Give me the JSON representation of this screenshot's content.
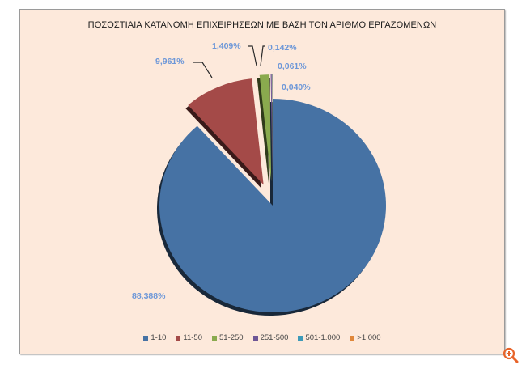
{
  "chart_data": {
    "type": "pie",
    "title": "ΠΟΣΟΣΤΙΑΙΑ ΚΑΤΑΝΟΜΗ ΕΠΙΧΕΙΡΗΣΕΩΝ ΜΕ ΒΑΣΗ ΤΟΝ ΑΡΙΘΜΟ ΕΡΓΑΖΟΜΕΝΩΝ",
    "categories": [
      "1-10",
      "11-50",
      "51-250",
      "251-500",
      "501-1.000",
      ">1.000"
    ],
    "values": [
      88.388,
      9.961,
      1.409,
      0.142,
      0.061,
      0.04
    ],
    "labels": [
      "88,388%",
      "9,961%",
      "1,409%",
      "0,142%",
      "0,061%",
      "0,040%"
    ],
    "colors": [
      "#4672a4",
      "#a44a48",
      "#8aaa4e",
      "#6e5696",
      "#3d9ab8",
      "#e0873a"
    ],
    "exploded": [
      false,
      true,
      true,
      true,
      true,
      true
    ],
    "legend_position": "bottom",
    "background": "#fde9db"
  },
  "legend": [
    {
      "label": "1-10",
      "color": "#4672a4"
    },
    {
      "label": "11-50",
      "color": "#a44a48"
    },
    {
      "label": "51-250",
      "color": "#8aaa4e"
    },
    {
      "label": "251-500",
      "color": "#6e5696"
    },
    {
      "label": "501-1.000",
      "color": "#3d9ab8"
    },
    {
      "label": ">1.000",
      "color": "#e0873a"
    }
  ],
  "title": "ΠΟΣΟΣΤΙΑΙΑ ΚΑΤΑΝΟΜΗ ΕΠΙΧΕΙΡΗΣΕΩΝ ΜΕ ΒΑΣΗ ΤΟΝ ΑΡΙΘΜΟ ΕΡΓΑΖΟΜΕΝΩΝ",
  "zoom_icon": "zoom-in-icon"
}
